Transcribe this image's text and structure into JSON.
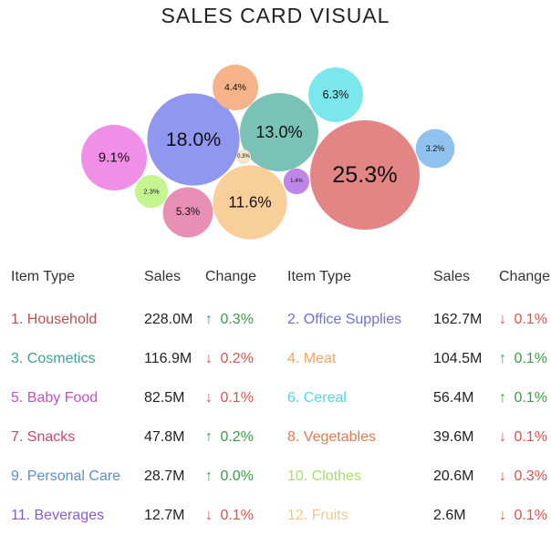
{
  "title": "SALES CARD VISUAL",
  "headers": {
    "item_type": "Item Type",
    "sales": "Sales",
    "change": "Change"
  },
  "chart_data": {
    "type": "bubble",
    "bubbles": [
      {
        "label": "18.0%",
        "value": 18.0,
        "color": "#8f97ee"
      },
      {
        "label": "13.0%",
        "value": 13.0,
        "color": "#7ac2b6"
      },
      {
        "label": "25.3%",
        "value": 25.3,
        "color": "#e48585"
      },
      {
        "label": "4.4%",
        "value": 4.4,
        "color": "#f6b389"
      },
      {
        "label": "6.3%",
        "value": 6.3,
        "color": "#7be7ec"
      },
      {
        "label": "9.1%",
        "value": 9.1,
        "color": "#f08ee8"
      },
      {
        "label": "3.2%",
        "value": 3.2,
        "color": "#8fc2ee"
      },
      {
        "label": "11.6%",
        "value": 11.6,
        "color": "#f8cf9a"
      },
      {
        "label": "5.3%",
        "value": 5.3,
        "color": "#e98fb4"
      },
      {
        "label": "2.3%",
        "value": 2.3,
        "color": "#c5f58f"
      },
      {
        "label": "1.4%",
        "value": 1.4,
        "color": "#bf86e9"
      },
      {
        "label": "0.3%",
        "value": 0.3,
        "color": "#f3e7c8"
      }
    ]
  },
  "items": [
    {
      "name": "1. Household",
      "sales": "228.0M",
      "dir": "up",
      "change": "0.3%",
      "color": "#c0504d"
    },
    {
      "name": "2. Office Supplies",
      "sales": "162.7M",
      "dir": "down",
      "change": "0.1%",
      "color": "#6f6fd8"
    },
    {
      "name": "3. Cosmetics",
      "sales": "116.9M",
      "dir": "down",
      "change": "0.2%",
      "color": "#3f9e98"
    },
    {
      "name": "4. Meat",
      "sales": "104.5M",
      "dir": "up",
      "change": "0.1%",
      "color": "#f2a462"
    },
    {
      "name": "5. Baby Food",
      "sales": "82.5M",
      "dir": "down",
      "change": "0.1%",
      "color": "#c84fc3"
    },
    {
      "name": "6. Cereal",
      "sales": "56.4M",
      "dir": "up",
      "change": "0.1%",
      "color": "#55d6e0"
    },
    {
      "name": "7. Snacks",
      "sales": "47.8M",
      "dir": "up",
      "change": "0.2%",
      "color": "#c44a6e"
    },
    {
      "name": "8. Vegetables",
      "sales": "39.6M",
      "dir": "down",
      "change": "0.1%",
      "color": "#e07b50"
    },
    {
      "name": "9. Personal Care",
      "sales": "28.7M",
      "dir": "up",
      "change": "0.0%",
      "color": "#5a8fc9"
    },
    {
      "name": "10. Clothes",
      "sales": "20.6M",
      "dir": "down",
      "change": "0.3%",
      "color": "#a6e06a"
    },
    {
      "name": "11. Beverages",
      "sales": "12.7M",
      "dir": "down",
      "change": "0.1%",
      "color": "#8b5ad1"
    },
    {
      "name": "12. Fruits",
      "sales": "2.6M",
      "dir": "down",
      "change": "0.1%",
      "color": "#f1c888"
    }
  ]
}
